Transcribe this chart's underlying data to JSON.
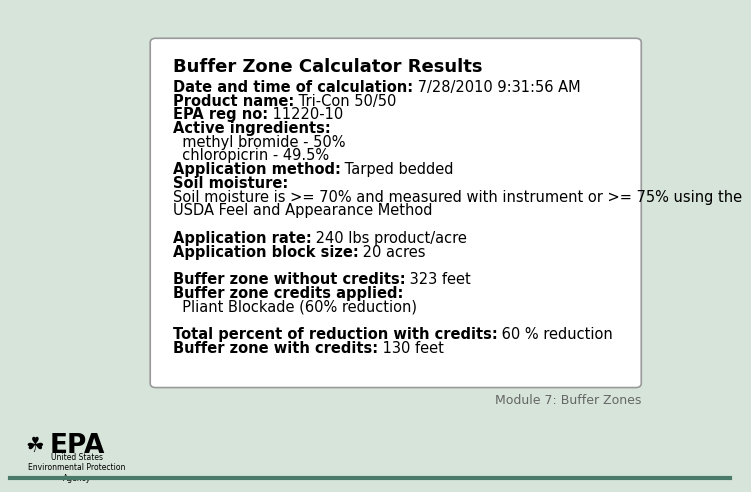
{
  "background_color": "#d6e4da",
  "box_color": "#ffffff",
  "box_edge_color": "#999999",
  "title": "Buffer Zone Calculator Results",
  "title_fontsize": 13,
  "body_fontsize": 10.5,
  "footer_text": "Module 7: Buffer Zones",
  "footer_fontsize": 9,
  "lines": [
    {
      "bold_part": "Date and time of calculation:",
      "normal_part": " 7/28/2010 9:31:56 AM"
    },
    {
      "bold_part": "Product name:",
      "normal_part": " Tri-Con 50/50"
    },
    {
      "bold_part": "EPA reg no:",
      "normal_part": " 11220-10"
    },
    {
      "bold_part": "Active ingredients:",
      "normal_part": ""
    },
    {
      "bold_part": "",
      "normal_part": "  methyl bromide - 50%"
    },
    {
      "bold_part": "",
      "normal_part": "  chloropicrin - 49.5%"
    },
    {
      "bold_part": "Application method:",
      "normal_part": " Tarped bedded"
    },
    {
      "bold_part": "Soil moisture:",
      "normal_part": ""
    },
    {
      "bold_part": "",
      "normal_part": "Soil moisture is >= 70% and measured with instrument or >= 75% using the"
    },
    {
      "bold_part": "",
      "normal_part": "USDA Feel and Appearance Method"
    },
    {
      "bold_part": "",
      "normal_part": ""
    },
    {
      "bold_part": "Application rate:",
      "normal_part": " 240 lbs product/acre"
    },
    {
      "bold_part": "Application block size:",
      "normal_part": " 20 acres"
    },
    {
      "bold_part": "",
      "normal_part": ""
    },
    {
      "bold_part": "Buffer zone without credits:",
      "normal_part": " 323 feet"
    },
    {
      "bold_part": "Buffer zone credits applied:",
      "normal_part": ""
    },
    {
      "bold_part": "",
      "normal_part": "  Pliant Blockade (60% reduction)"
    },
    {
      "bold_part": "",
      "normal_part": ""
    },
    {
      "bold_part": "Total percent of reduction with credits:",
      "normal_part": " 60 % reduction"
    },
    {
      "bold_part": "Buffer zone with credits:",
      "normal_part": " 130 feet"
    }
  ]
}
